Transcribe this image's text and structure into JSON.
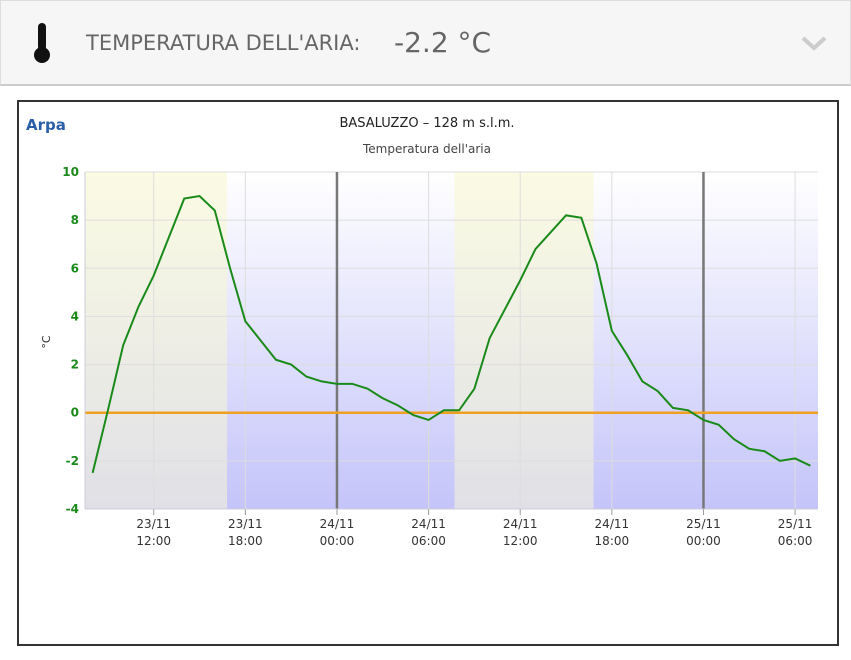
{
  "header": {
    "title": "TEMPERATURA DELL'ARIA:",
    "value": "-2.2 °C"
  },
  "logo": "Arpa",
  "chart_data": {
    "type": "line",
    "title": "BASALUZZO – 128 m s.l.m.",
    "subtitle": "Temperatura dell'aria",
    "y_label": "°C",
    "x": [
      8,
      9,
      10,
      11,
      12,
      13,
      14,
      15,
      16,
      17,
      18,
      19,
      20,
      21,
      22,
      23,
      24,
      25,
      26,
      27,
      28,
      29,
      30,
      31,
      32,
      33,
      34,
      35,
      36,
      37,
      38,
      39,
      40,
      41,
      42,
      43,
      44,
      45,
      46,
      47,
      48,
      49,
      50,
      51,
      52,
      53,
      54,
      55
    ],
    "series": [
      {
        "name": "Temperatura dell'aria",
        "color": "#1a8a1a",
        "values": [
          -2.5,
          0.1,
          2.8,
          4.4,
          5.7,
          7.3,
          8.9,
          9.0,
          8.4,
          6.0,
          3.8,
          3.0,
          2.2,
          2.0,
          1.5,
          1.3,
          1.2,
          1.2,
          1.0,
          0.6,
          0.3,
          -0.1,
          -0.3,
          0.1,
          0.1,
          1.0,
          3.1,
          4.3,
          5.5,
          6.8,
          7.5,
          8.2,
          8.1,
          6.2,
          3.4,
          2.4,
          1.3,
          0.9,
          0.2,
          0.1,
          -0.3,
          -0.5,
          -1.1,
          -1.5,
          -1.6,
          -2.0,
          -1.9,
          -2.2
        ]
      }
    ],
    "xlim": [
      7.5,
      55.5
    ],
    "xticks": [
      {
        "value": 12,
        "label": "23/11 12:00"
      },
      {
        "value": 18,
        "label": "23/11 18:00"
      },
      {
        "value": 24,
        "label": "24/11 00:00"
      },
      {
        "value": 30,
        "label": "24/11 06:00"
      },
      {
        "value": 36,
        "label": "24/11 12:00"
      },
      {
        "value": 42,
        "label": "24/11 18:00"
      },
      {
        "value": 48,
        "label": "25/11 00:00"
      },
      {
        "value": 54,
        "label": "25/11 06:00"
      }
    ],
    "ylim": [
      -4,
      10
    ],
    "yticks": [
      -4,
      -2,
      0,
      2,
      4,
      6,
      8,
      10
    ],
    "day_lines": [
      24,
      48
    ],
    "daylight_bands": [
      [
        7.5,
        16.8
      ],
      [
        31.7,
        40.8
      ]
    ],
    "grid": true
  }
}
